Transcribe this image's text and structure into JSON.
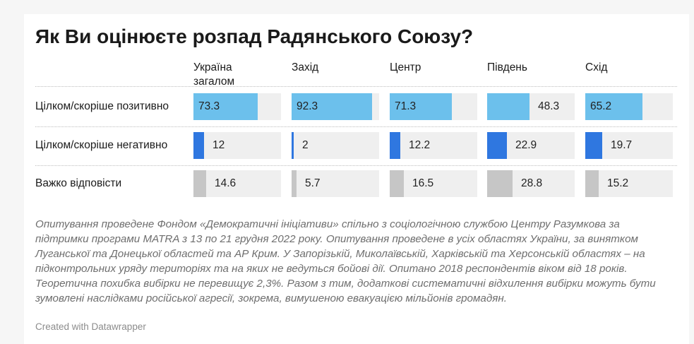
{
  "title": "Як Ви оцінюєте розпад Радянського Союзу?",
  "chart_data": {
    "type": "table",
    "title": "Як Ви оцінюєте розпад Радянського Союзу?",
    "columns": [
      "Україна\nзагалом",
      "Захід",
      "Центр",
      "Південь",
      "Схід"
    ],
    "scale_max": 100,
    "rows": [
      {
        "label": "Цілком/скоріше позитивно",
        "values": [
          73.3,
          92.3,
          71.3,
          48.3,
          65.2
        ],
        "display": [
          "73.3",
          "92.3",
          "71.3",
          "48.3",
          "65.2"
        ],
        "color": "#6cc0ec"
      },
      {
        "label": "Цілком/скоріше негативно",
        "values": [
          12,
          2,
          12.2,
          22.9,
          19.7
        ],
        "display": [
          "12",
          "2",
          "12.2",
          "22.9",
          "19.7"
        ],
        "color": "#2f77e0"
      },
      {
        "label": "Важко відповісти",
        "values": [
          14.6,
          5.7,
          16.5,
          28.8,
          15.2
        ],
        "display": [
          "14.6",
          "5.7",
          "16.5",
          "28.8",
          "15.2"
        ],
        "color": "#c6c6c6"
      }
    ]
  },
  "footnote": "Опитування проведене Фондом «Демократичні ініціативи» спільно з соціологічною службою Центру Разумкова за підтримки програми MATRA з 13 по 21 грудня 2022 року. Опитування проведене в усіх областях України, за винятком Луганської та Донецької областей та АР Крим. У Запорізькій, Миколаївській, Харківській та Херсонській областях – на підконтрольних уряду територіях та на яких не ведуться бойові дії. Опитано 2018 респондентів віком від 18 років. Теоретична похибка вибірки не перевищує 2,3%. Разом з тим, додаткові систематичні відхилення вибірки можуть бути зумовлені наслідками російської агресії, зокрема, вимушеною евакуацією мільйонів громадян.",
  "credit": "Created with Datawrapper"
}
